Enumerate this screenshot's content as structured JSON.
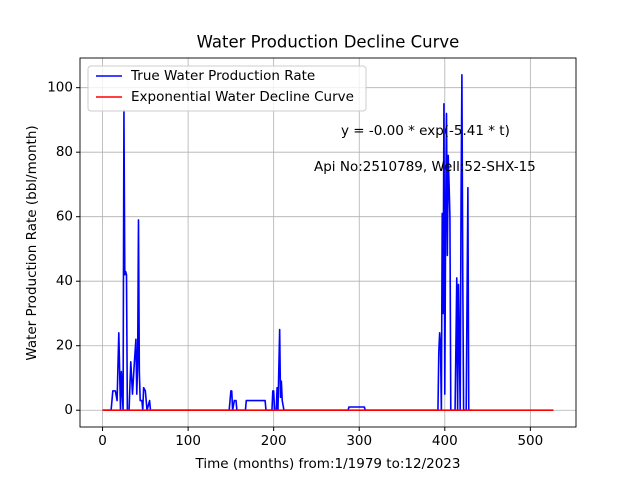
{
  "chart_data": {
    "type": "line",
    "title": "Water Production Decline Curve",
    "x_label": "Time (months) from:1/1979 to:12/2023",
    "y_label": "Water Production Rate (bbl/month)",
    "annotations": [
      "y = -0.00 * exp(-5.41 * t)",
      "Api No:2510789, Well:52-SHX-15"
    ],
    "xlim": [
      -26.35,
      553.35
    ],
    "xticks": [
      0,
      100,
      200,
      300,
      400,
      500
    ],
    "ylim": [
      -5.2,
      109.2
    ],
    "yticks": [
      0,
      20,
      40,
      60,
      80,
      100
    ],
    "grid": true,
    "legend": "upper left",
    "series": [
      {
        "name": "True Water Production Rate",
        "color": "#0000ff",
        "x": [
          0,
          10,
          12,
          15,
          17,
          19,
          21,
          22,
          24,
          25,
          26,
          27,
          28,
          29,
          31,
          33,
          35,
          37,
          39,
          40,
          41,
          42,
          43,
          44,
          46,
          47,
          48,
          50,
          52,
          55,
          56,
          148,
          150,
          151,
          152,
          154,
          156,
          157,
          167,
          168,
          190,
          191,
          198,
          199,
          200,
          201,
          203,
          204,
          205,
          207,
          208,
          209,
          210,
          212,
          215,
          287,
          288,
          306,
          307,
          392,
          393,
          394,
          395,
          396,
          397,
          398,
          399,
          400,
          401,
          402,
          403,
          404,
          405,
          406,
          407,
          409,
          412,
          413,
          414,
          415,
          416,
          417,
          418,
          419,
          420,
          421,
          422,
          425,
          427,
          428,
          432
        ],
        "values": [
          0,
          0,
          6,
          6,
          3,
          24,
          0,
          12,
          0,
          93,
          42,
          43,
          42,
          0,
          0,
          15,
          5,
          14,
          22,
          5,
          14,
          59,
          12,
          3,
          3,
          0,
          7,
          6,
          0,
          3,
          0,
          0,
          6,
          6,
          0,
          3,
          3,
          0,
          0,
          3,
          3,
          0,
          0,
          6,
          6,
          0,
          0,
          7,
          0,
          25,
          4,
          9,
          3,
          0,
          0,
          0,
          1,
          1,
          0,
          0,
          18,
          24,
          20,
          0,
          61,
          30,
          95,
          5,
          60,
          92,
          48,
          79,
          70,
          60,
          0,
          0,
          0,
          20,
          41,
          0,
          39,
          20,
          0,
          65,
          104,
          42,
          0,
          0,
          69,
          0,
          0
        ]
      },
      {
        "name": "Exponential Water Decline Curve",
        "color": "#ff0000",
        "x": [
          0,
          527
        ],
        "values": [
          0,
          0
        ]
      }
    ]
  }
}
